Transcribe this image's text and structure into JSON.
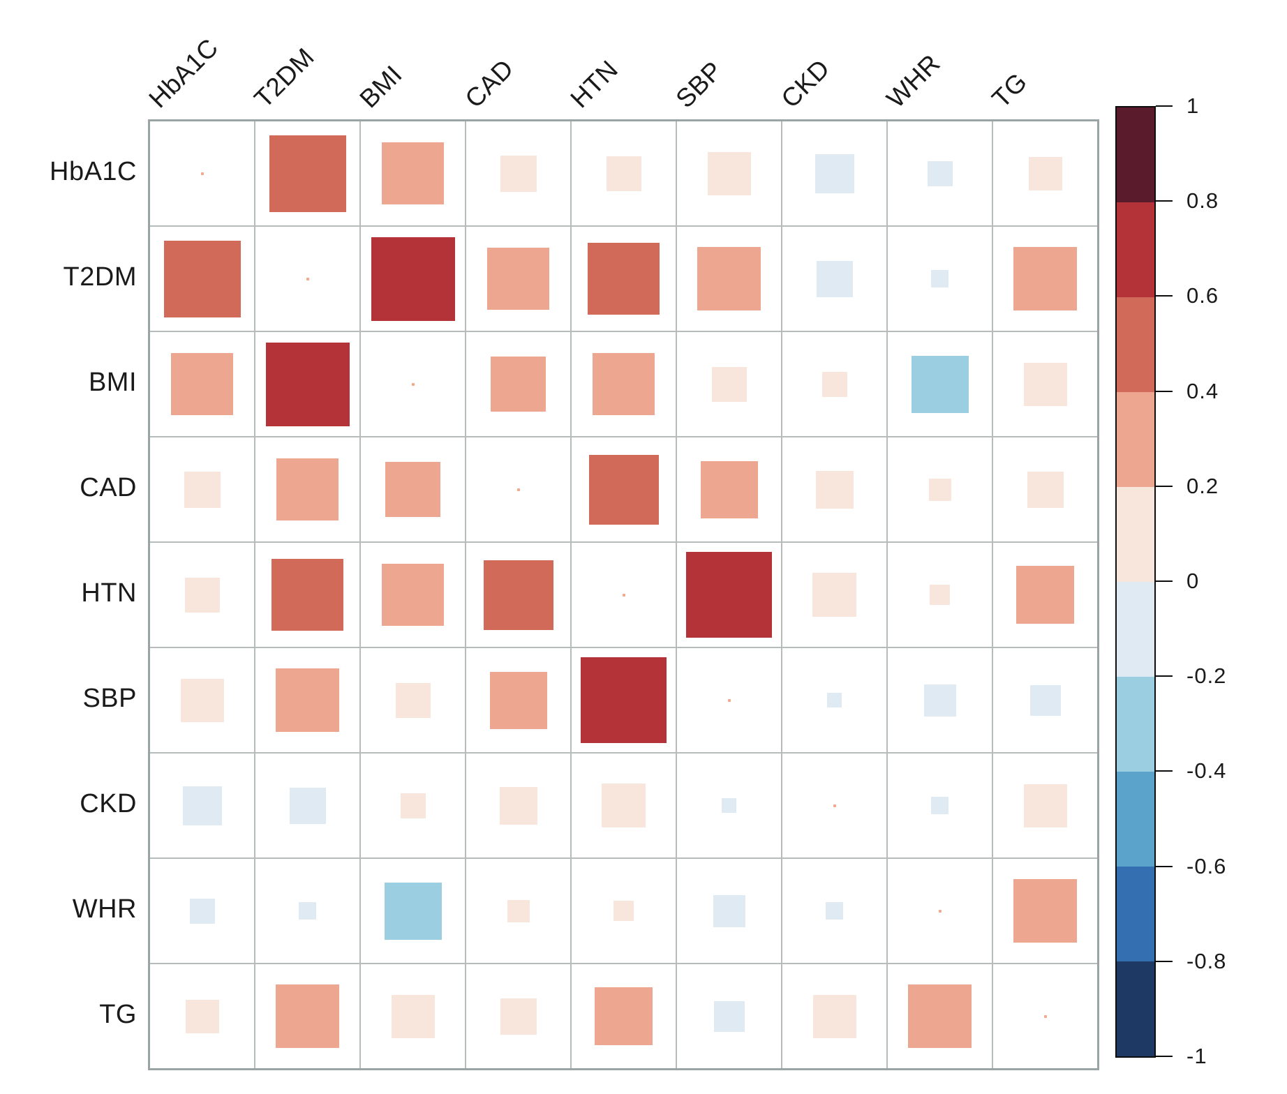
{
  "chart_data": {
    "type": "heatmap",
    "subtype": "correlation-matrix-sized-squares",
    "title": "",
    "variables": [
      "HbA1C",
      "T2DM",
      "BMI",
      "CAD",
      "HTN",
      "SBP",
      "CKD",
      "WHR",
      "TG"
    ],
    "matrix": [
      [
        null,
        0.58,
        0.38,
        0.13,
        0.12,
        0.18,
        -0.15,
        -0.06,
        0.11
      ],
      [
        0.58,
        null,
        0.68,
        0.38,
        0.5,
        0.39,
        -0.13,
        -0.03,
        0.39
      ],
      [
        0.38,
        0.68,
        null,
        0.3,
        0.38,
        0.12,
        0.06,
        -0.32,
        0.18
      ],
      [
        0.13,
        0.38,
        0.3,
        null,
        0.48,
        0.32,
        0.14,
        0.05,
        0.13
      ],
      [
        0.12,
        0.5,
        0.38,
        0.48,
        null,
        0.72,
        0.19,
        0.04,
        0.33
      ],
      [
        0.18,
        0.39,
        0.12,
        0.32,
        0.72,
        null,
        -0.02,
        -0.1,
        -0.09
      ],
      [
        -0.15,
        -0.13,
        0.06,
        0.14,
        0.19,
        -0.02,
        null,
        -0.03,
        0.18
      ],
      [
        -0.06,
        -0.03,
        -0.32,
        0.05,
        0.04,
        -0.1,
        -0.03,
        null,
        0.39
      ],
      [
        0.11,
        0.39,
        0.18,
        0.13,
        0.33,
        -0.09,
        0.18,
        0.39,
        null
      ]
    ],
    "value_range": [
      -1,
      1
    ],
    "size_encoding": "square side proportional to sqrt(|r|)",
    "grid": "on",
    "legend_position": "right",
    "colorbar": {
      "tick_labels": [
        "1",
        "0.8",
        "0.6",
        "0.4",
        "0.2",
        "0",
        "-0.2",
        "-0.4",
        "-0.6",
        "-0.8",
        "-1"
      ],
      "tick_values": [
        1,
        0.8,
        0.6,
        0.4,
        0.2,
        0,
        -0.2,
        -0.4,
        -0.6,
        -0.8,
        -1
      ],
      "segment_colors_top_to_bottom": [
        "#5a1b2c",
        "#b43339",
        "#d16a58",
        "#eda690",
        "#f8e5dc",
        "#dfeaf2",
        "#9ccee2",
        "#5ba3cb",
        "#3470b1",
        "#1e3a64"
      ]
    },
    "diagonal_marker_color": "#f2a98e"
  }
}
